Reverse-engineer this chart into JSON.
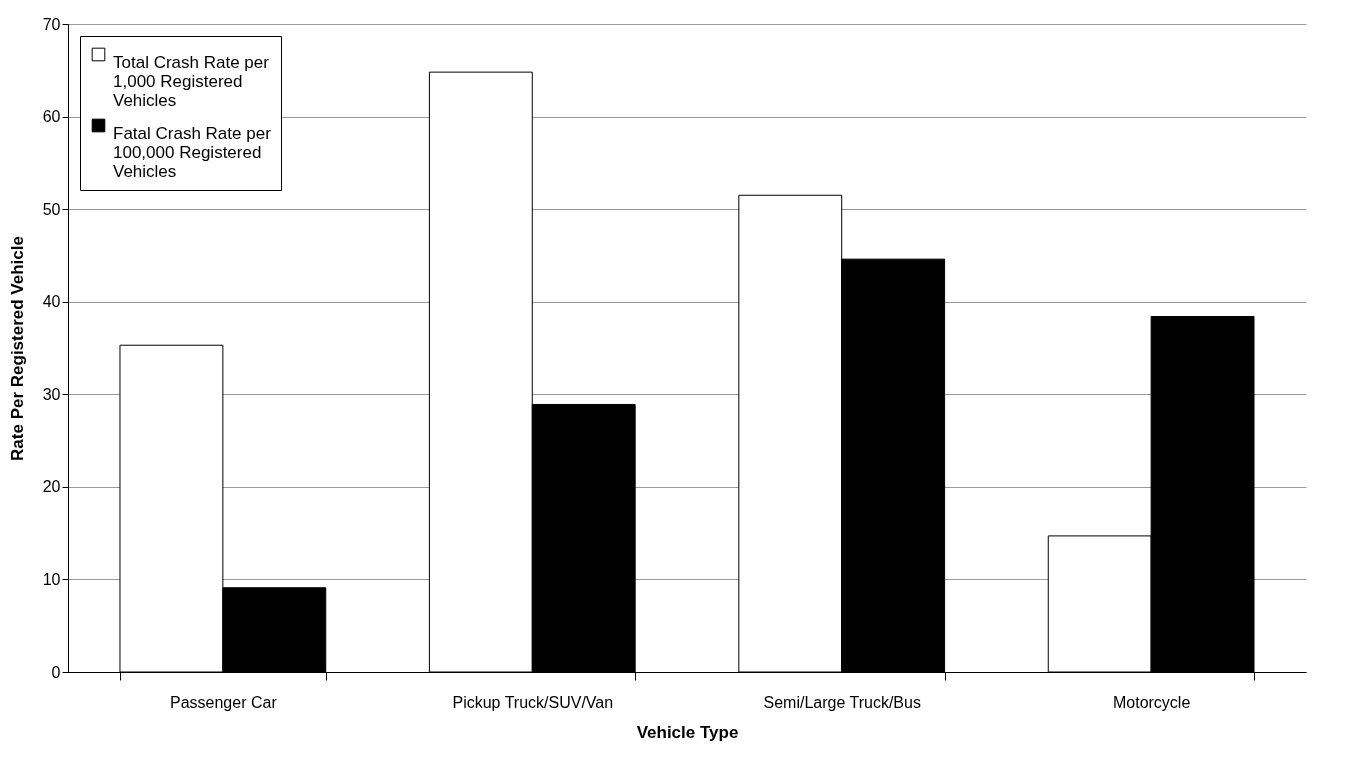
{
  "chart_data": {
    "type": "bar",
    "xlabel": "Vehicle Type",
    "ylabel": "Rate Per Registered Vehicle",
    "categories": [
      "Passenger Car",
      "Pickup Truck/SUV/Van",
      "Semi/Large Truck/Bus",
      "Motorcycle"
    ],
    "series": [
      {
        "name": "Total Crash Rate per 1,000 Registered Vehicles",
        "color": "#ffffff",
        "values": [
          35.3,
          64.8,
          51.5,
          14.7
        ]
      },
      {
        "name": "Fatal Crash Rate per 100,000 Registered Vehicles",
        "color": "#000000",
        "values": [
          9.1,
          28.9,
          44.6,
          38.4
        ]
      }
    ],
    "ylim": [
      0,
      70
    ],
    "yticks": [
      0,
      10,
      20,
      30,
      40,
      50,
      60,
      70
    ],
    "grid": "y",
    "legend": "top left"
  }
}
